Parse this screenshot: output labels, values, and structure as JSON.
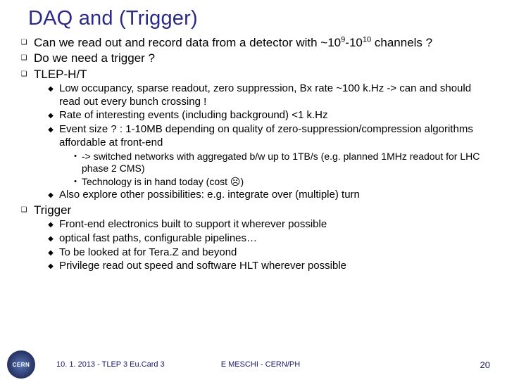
{
  "title": "DAQ and (Trigger)",
  "bullets": {
    "q1_pre": "Can we read out and record data from a detector with ~10",
    "q1_sup1": "9",
    "q1_mid": "-10",
    "q1_sup2": "10",
    "q1_post": " channels ?",
    "q2": "Do we need a trigger ?",
    "q3": "TLEP-H/T",
    "s1": "Low occupancy, sparse readout, zero suppression, Bx rate ~100 k.Hz -> can and should read out every bunch crossing !",
    "s2": "Rate of interesting events (including background) <1 k.Hz",
    "s3": "Event size ? : 1-10MB depending on quality of zero-suppression/compression algorithms affordable at front-end",
    "t1": "-> switched networks with aggregated b/w up to 1TB/s (e.g. planned 1MHz readout for LHC phase 2 CMS)",
    "t2": "Technology is in hand today (cost ☹)",
    "s4": "Also explore other possibilities: e.g. integrate over (multiple) turn",
    "q4": "Trigger",
    "u1": "Front-end electronics built to support it wherever possible",
    "u2": "optical fast paths, configurable pipelines…",
    "u3": "To be looked at for Tera.Z and beyond",
    "u4": "Privilege read out speed and software HLT wherever possible"
  },
  "footer": {
    "left": "10. 1. 2013 - TLEP 3 Eu.Card 3",
    "mid": "E MESCHI - CERN/PH",
    "page": "20",
    "logo_text": "CERN"
  },
  "style": {
    "square": "❏",
    "diamond": "◆",
    "dot": "•"
  }
}
